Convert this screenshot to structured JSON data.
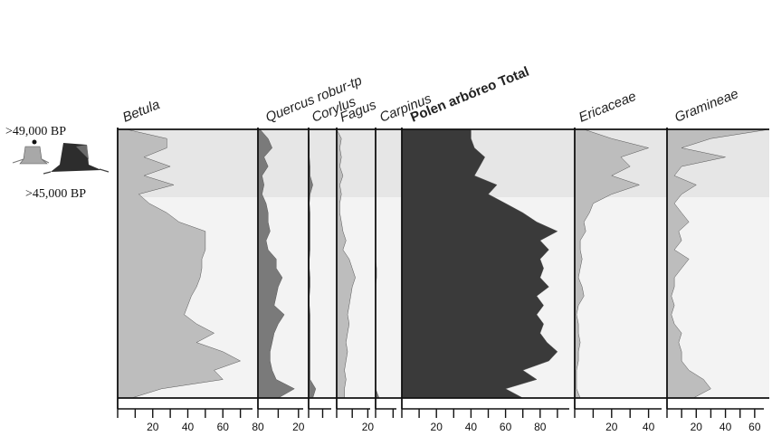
{
  "dates": {
    "upper": ">49,000 BP",
    "lower": ">45,000 BP"
  },
  "colors": {
    "light_fill": "#bdbdbd",
    "medium_fill": "#7a7a7a",
    "dark_fill": "#3a3a3a",
    "background": "#f3f3f3",
    "band": "#e6e6e6",
    "axis": "#111111"
  },
  "icons": [
    "tree-stump-small-icon",
    "tree-stump-large-icon"
  ],
  "chart_data": {
    "type": "area",
    "orientation": "vertical pollen diagram",
    "x_unit": "%",
    "depth_samples": 30,
    "panels": [
      {
        "name": "Betula",
        "bold": false,
        "fill": "#bdbdbd",
        "xlim": [
          0,
          80
        ],
        "ticks": [
          20,
          40,
          60,
          80
        ],
        "tick_labels": [
          "20",
          "40",
          "60",
          "80"
        ],
        "values": [
          5,
          28,
          28,
          15,
          30,
          15,
          32,
          12,
          18,
          28,
          35,
          50,
          50,
          50,
          48,
          48,
          47,
          45,
          42,
          40,
          38,
          45,
          55,
          45,
          60,
          70,
          55,
          60,
          25,
          8
        ]
      },
      {
        "name": "Quercus robur-tp",
        "bold": false,
        "fill": "#7a7a7a",
        "xlim": [
          0,
          25
        ],
        "ticks": [
          20
        ],
        "tick_labels": [
          "20"
        ],
        "values": [
          1,
          5,
          7,
          3,
          5,
          2,
          3,
          2,
          4,
          5,
          5,
          6,
          4,
          5,
          9,
          9,
          12,
          10,
          9,
          8,
          13,
          10,
          8,
          7,
          6,
          6,
          7,
          9,
          18,
          10
        ]
      },
      {
        "name": "Corylus",
        "bold": false,
        "fill": "#7a7a7a",
        "xlim": [
          0,
          20
        ],
        "ticks": [],
        "tick_labels": [],
        "values": [
          0,
          0.5,
          0.5,
          0.5,
          1,
          1,
          3,
          1,
          0.5,
          1,
          1,
          1,
          1,
          1,
          0.5,
          0.5,
          1,
          1,
          0.5,
          0.5,
          1,
          1,
          1,
          1,
          1,
          1,
          1,
          1,
          5,
          3
        ]
      },
      {
        "name": "Fagus",
        "bold": false,
        "fill": "#bdbdbd",
        "xlim": [
          0,
          25
        ],
        "ticks": [
          20
        ],
        "tick_labels": [
          "20"
        ],
        "values": [
          0,
          3,
          2,
          3,
          2,
          4,
          2,
          3,
          2,
          2,
          3,
          4,
          6,
          4,
          8,
          10,
          12,
          10,
          9,
          8,
          7,
          8,
          7,
          6,
          7,
          6,
          5,
          6,
          5,
          5
        ]
      },
      {
        "name": "Carpinus",
        "bold": false,
        "fill": "#7a7a7a",
        "xlim": [
          0,
          15
        ],
        "ticks": [],
        "tick_labels": [],
        "values": [
          0,
          0,
          0,
          0,
          0,
          0,
          0,
          0,
          0,
          0,
          0,
          0,
          0,
          0,
          0,
          0.5,
          0.5,
          0,
          0,
          0,
          0,
          0,
          0,
          0,
          0,
          0,
          0,
          0,
          0,
          2
        ]
      },
      {
        "name": "Polen arbóreo Total",
        "bold": true,
        "fill": "#3a3a3a",
        "xlim": [
          0,
          100
        ],
        "ticks": [
          20,
          40,
          60,
          80
        ],
        "tick_labels": [
          "20",
          "40",
          "60",
          "80"
        ],
        "values": [
          40,
          40,
          42,
          48,
          45,
          42,
          55,
          50,
          60,
          70,
          78,
          90,
          80,
          85,
          80,
          82,
          80,
          85,
          78,
          82,
          78,
          82,
          80,
          84,
          90,
          85,
          70,
          78,
          60,
          70
        ]
      },
      {
        "name": "Ericaceae",
        "bold": false,
        "fill": "#bdbdbd",
        "xlim": [
          0,
          50
        ],
        "ticks": [
          20,
          40
        ],
        "tick_labels": [
          "20",
          "40"
        ],
        "values": [
          5,
          20,
          40,
          25,
          30,
          20,
          35,
          20,
          10,
          8,
          5,
          6,
          3,
          3,
          4,
          3,
          2,
          4,
          5,
          2,
          1,
          2,
          2,
          3,
          2,
          2,
          1,
          1,
          1,
          3
        ]
      },
      {
        "name": "Gramineae",
        "bold": false,
        "fill": "#bdbdbd",
        "xlim": [
          0,
          70
        ],
        "ticks": [
          20,
          40,
          60
        ],
        "tick_labels": [
          "20",
          "40",
          "60"
        ],
        "values": [
          70,
          30,
          10,
          40,
          10,
          5,
          20,
          10,
          5,
          10,
          15,
          8,
          10,
          5,
          15,
          10,
          5,
          5,
          3,
          5,
          3,
          5,
          10,
          8,
          10,
          10,
          15,
          25,
          30,
          18
        ]
      }
    ]
  }
}
